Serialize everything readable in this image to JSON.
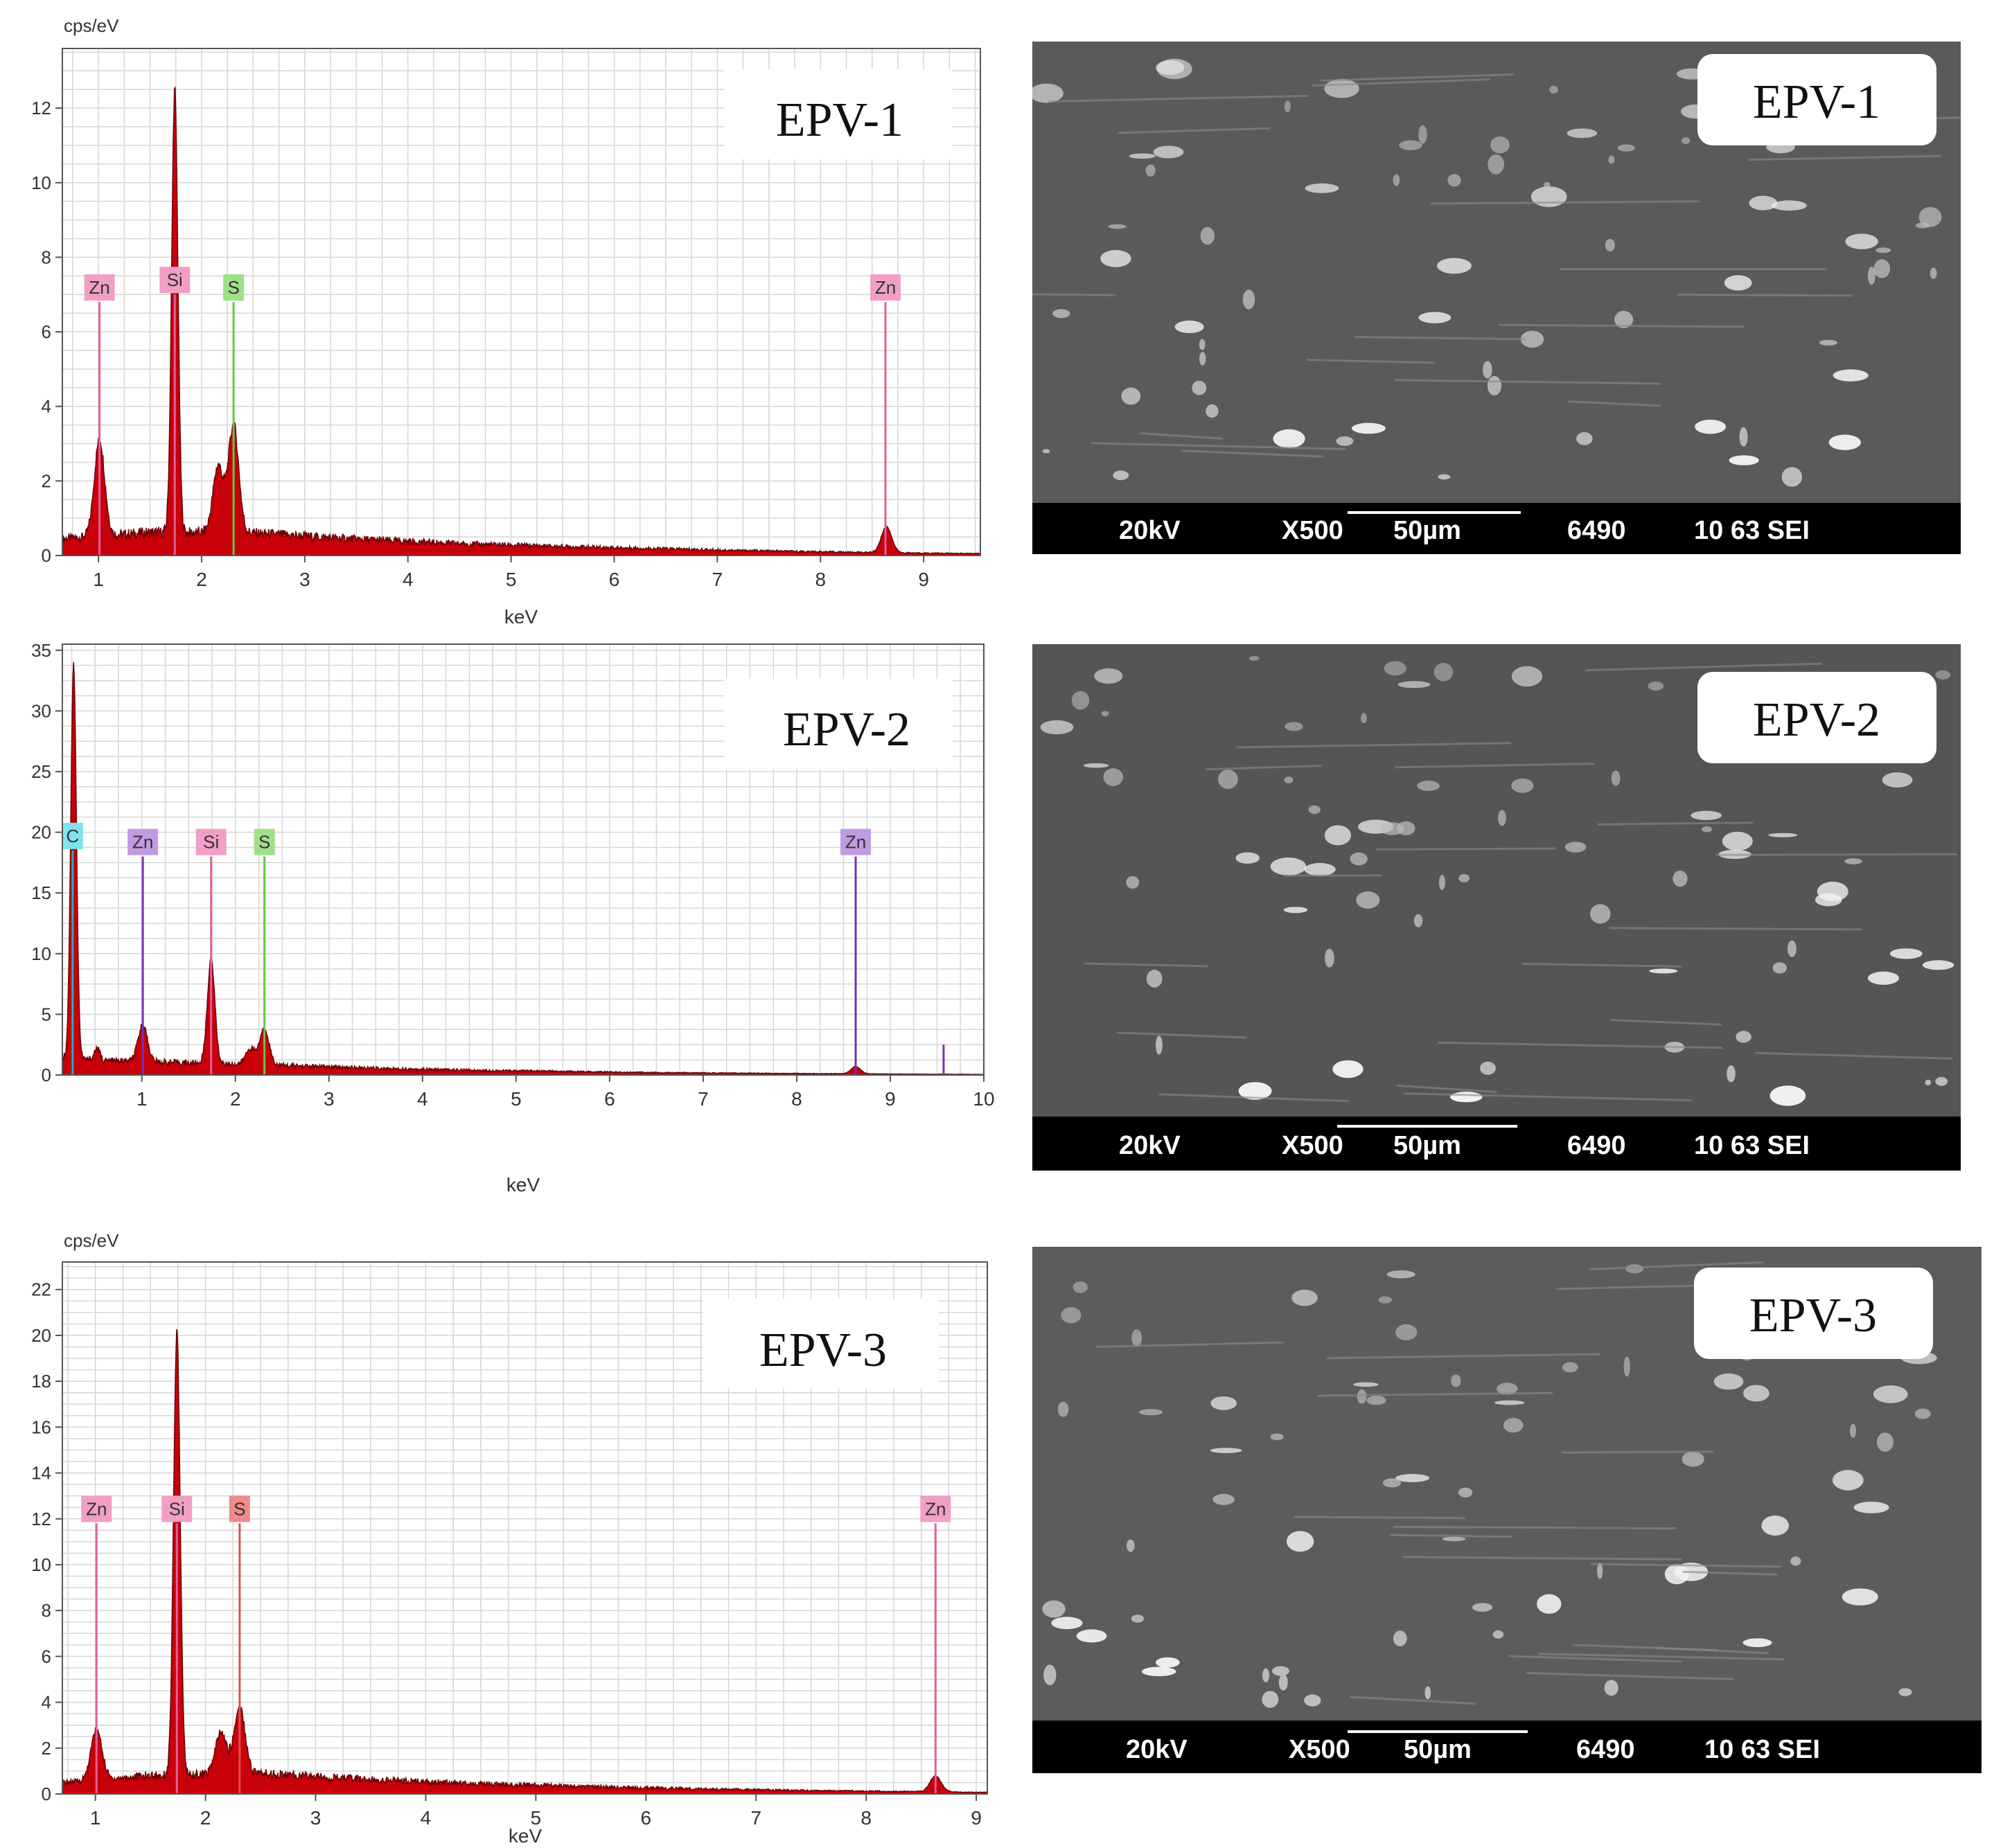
{
  "chart_data": [
    {
      "type": "line",
      "title": "EPV-1",
      "ylabel": "cps/eV",
      "xlabel": "keV",
      "xlim": [
        0.65,
        9.55
      ],
      "ylim": [
        0,
        13.6
      ],
      "xticks": [
        1,
        2,
        3,
        4,
        5,
        6,
        7,
        8,
        9
      ],
      "yticks": [
        0,
        2,
        4,
        6,
        8,
        10,
        12
      ],
      "grid": true,
      "series": [
        {
          "name": "spectrum",
          "baseline": [
            [
              0.65,
              0.45
            ],
            [
              1.5,
              0.62
            ],
            [
              2.5,
              0.6
            ],
            [
              3.5,
              0.44
            ],
            [
              4.5,
              0.32
            ],
            [
              5.5,
              0.24
            ],
            [
              6.5,
              0.18
            ],
            [
              7.5,
              0.12
            ],
            [
              8.5,
              0.08
            ],
            [
              9.55,
              0.05
            ]
          ],
          "peaks": [
            {
              "center": 1.01,
              "height": 2.6,
              "width": 0.05
            },
            {
              "center": 1.74,
              "height": 11.9,
              "width": 0.03
            },
            {
              "center": 2.16,
              "height": 1.8,
              "width": 0.05
            },
            {
              "center": 2.31,
              "height": 2.9,
              "width": 0.05
            },
            {
              "center": 8.64,
              "height": 0.7,
              "width": 0.05
            }
          ]
        }
      ],
      "element_lines": [
        {
          "label": "Zn",
          "x": 1.01,
          "y": 6.8,
          "color": "#e0609a",
          "tag_color": "#f19fc6"
        },
        {
          "label": "Si",
          "x": 1.74,
          "y": 7.0,
          "color": "#e0609a",
          "tag_color": "#f19fc6"
        },
        {
          "label": "S",
          "x": 2.31,
          "y": 6.8,
          "color": "#63c742",
          "tag_color": "#9fe08a"
        },
        {
          "label": "Zn",
          "x": 8.63,
          "y": 6.8,
          "color": "#e0609a",
          "tag_color": "#f19fc6"
        }
      ]
    },
    {
      "type": "line",
      "title": "EPV-2",
      "ylabel": "",
      "xlabel": "keV",
      "xlim": [
        0.15,
        10
      ],
      "ylim": [
        0,
        35.5
      ],
      "xticks": [
        1,
        2,
        3,
        4,
        5,
        6,
        7,
        8,
        9,
        10
      ],
      "yticks": [
        0,
        5,
        10,
        15,
        20,
        25,
        30,
        35
      ],
      "grid": true,
      "series": [
        {
          "name": "spectrum",
          "baseline": [
            [
              0.15,
              1.5
            ],
            [
              0.5,
              1.2
            ],
            [
              1.5,
              1.0
            ],
            [
              2.5,
              0.8
            ],
            [
              3.5,
              0.55
            ],
            [
              4.5,
              0.4
            ],
            [
              5.5,
              0.3
            ],
            [
              6.5,
              0.2
            ],
            [
              7.5,
              0.15
            ],
            [
              8.5,
              0.1
            ],
            [
              10,
              0.05
            ]
          ],
          "peaks": [
            {
              "center": 0.27,
              "height": 32.5,
              "width": 0.03
            },
            {
              "center": 0.52,
              "height": 1.0,
              "width": 0.03
            },
            {
              "center": 1.01,
              "height": 3.0,
              "width": 0.05
            },
            {
              "center": 1.74,
              "height": 8.6,
              "width": 0.04
            },
            {
              "center": 2.16,
              "height": 1.3,
              "width": 0.05
            },
            {
              "center": 2.31,
              "height": 3.0,
              "width": 0.05
            },
            {
              "center": 8.63,
              "height": 0.6,
              "width": 0.05
            }
          ]
        }
      ],
      "element_lines": [
        {
          "label": "C",
          "x": 0.26,
          "y": 18.5,
          "color": "#1fb0c8",
          "tag_color": "#7fe3ee"
        },
        {
          "label": "Zn",
          "x": 1.01,
          "y": 18.0,
          "color": "#7a2fb5",
          "tag_color": "#c19be0"
        },
        {
          "label": "Si",
          "x": 1.74,
          "y": 18.0,
          "color": "#e0609a",
          "tag_color": "#f19fc6"
        },
        {
          "label": "S",
          "x": 2.31,
          "y": 18.0,
          "color": "#63c742",
          "tag_color": "#9fe08a"
        },
        {
          "label": "Zn",
          "x": 8.63,
          "y": 18.0,
          "color": "#7a2fb5",
          "tag_color": "#c19be0"
        },
        {
          "label": "",
          "x": 9.57,
          "y": 2.5,
          "color": "#7a2fb5",
          "tag_color": ""
        }
      ]
    },
    {
      "type": "line",
      "title": "EPV-3",
      "ylabel": "cps/eV",
      "xlabel": "keV",
      "xlim": [
        0.7,
        9.1
      ],
      "ylim": [
        0,
        23.2
      ],
      "xticks": [
        1,
        2,
        3,
        4,
        5,
        6,
        7,
        8,
        9
      ],
      "yticks": [
        0,
        2,
        4,
        6,
        8,
        10,
        12,
        14,
        16,
        18,
        20,
        22
      ],
      "grid": true,
      "series": [
        {
          "name": "spectrum",
          "baseline": [
            [
              0.7,
              0.5
            ],
            [
              1.5,
              0.8
            ],
            [
              2.5,
              0.9
            ],
            [
              3.5,
              0.62
            ],
            [
              4.5,
              0.45
            ],
            [
              5.5,
              0.32
            ],
            [
              6.5,
              0.22
            ],
            [
              7.5,
              0.15
            ],
            [
              8.5,
              0.1
            ],
            [
              9.1,
              0.07
            ]
          ],
          "peaks": [
            {
              "center": 1.01,
              "height": 2.2,
              "width": 0.05
            },
            {
              "center": 1.74,
              "height": 19.3,
              "width": 0.03
            },
            {
              "center": 2.14,
              "height": 1.8,
              "width": 0.05
            },
            {
              "center": 2.31,
              "height": 2.9,
              "width": 0.05
            },
            {
              "center": 8.63,
              "height": 0.7,
              "width": 0.05
            }
          ]
        }
      ],
      "element_lines": [
        {
          "label": "Zn",
          "x": 1.01,
          "y": 11.8,
          "color": "#e0609a",
          "tag_color": "#f19fc6"
        },
        {
          "label": "Si",
          "x": 1.74,
          "y": 11.8,
          "color": "#e0609a",
          "tag_color": "#f19fc6"
        },
        {
          "label": "S",
          "x": 2.31,
          "y": 11.8,
          "color": "#e05050",
          "tag_color": "#f08a8a"
        },
        {
          "label": "Zn",
          "x": 8.63,
          "y": 11.8,
          "color": "#e0609a",
          "tag_color": "#f19fc6"
        }
      ]
    }
  ],
  "sem_images": [
    {
      "title": "EPV-1",
      "info": {
        "voltage": "20kV",
        "magnification": "X500",
        "scale": "50µm",
        "number": "6490",
        "code": "10 63 SEI"
      }
    },
    {
      "title": "EPV-2",
      "info": {
        "voltage": "20kV",
        "magnification": "X500",
        "scale": "50µm",
        "number": "6490",
        "code": "10 63 SEI"
      }
    },
    {
      "title": "EPV-3",
      "info": {
        "voltage": "20kV",
        "magnification": "X500",
        "scale": "50µm",
        "number": "6490",
        "code": "10 63 SEI"
      }
    }
  ],
  "colors": {
    "spectrum_fill": "#c8000a",
    "spectrum_dark": "#6a0004",
    "grid": "#d6d6d6",
    "sem_background": "#5a5a5a",
    "sem_bar": "#000000"
  }
}
